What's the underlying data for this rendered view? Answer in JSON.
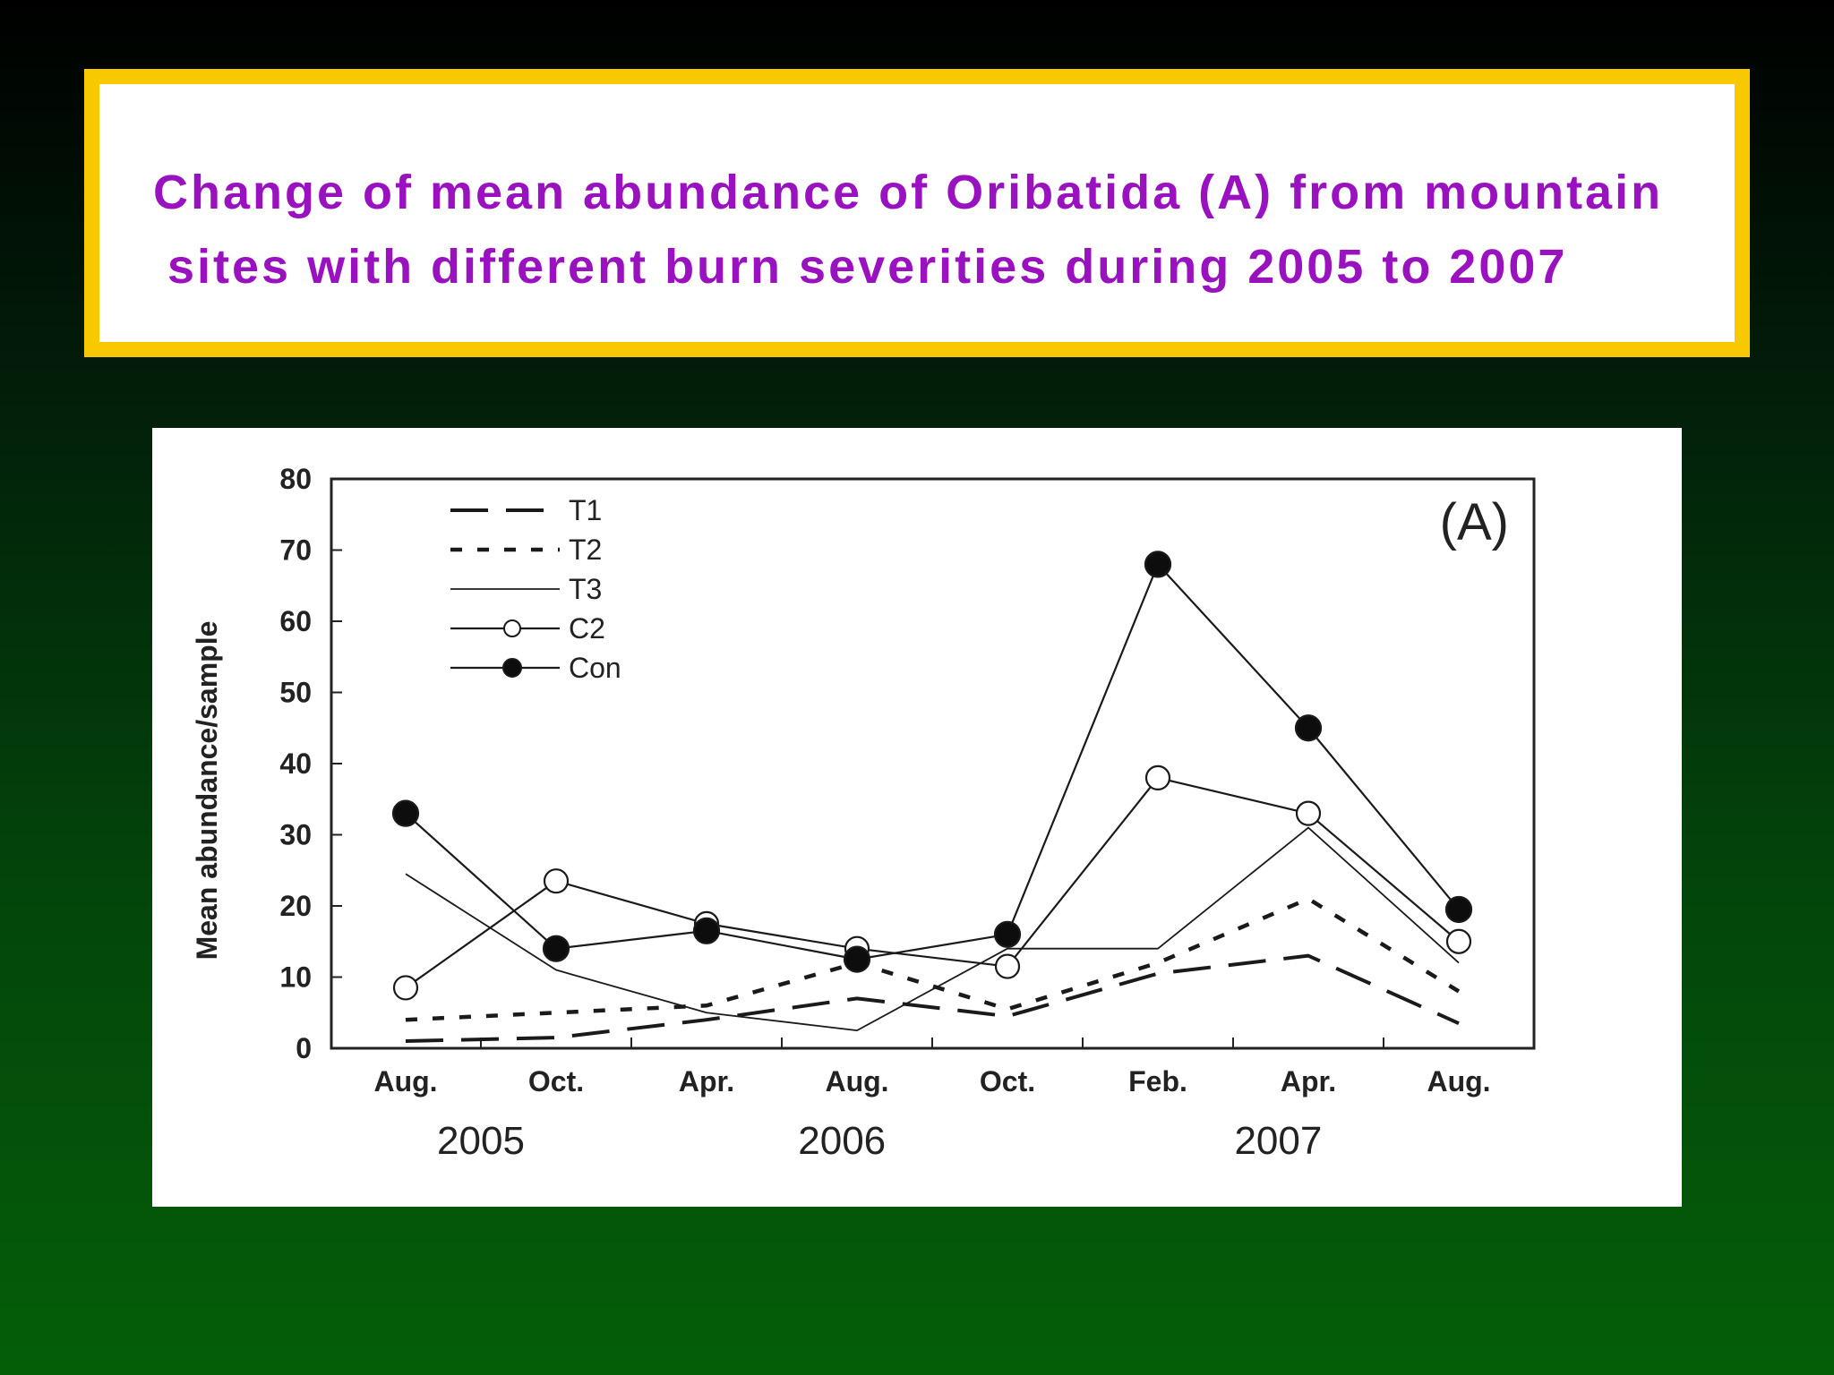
{
  "slide": {
    "title_lines": [
      "Change of mean abundance of Oribatida (A) from mountain",
      "sites with different burn severities during 2005 to 2007"
    ]
  },
  "chart_data": {
    "type": "line",
    "panel_label": "(A)",
    "ylabel": "Mean abundance/sample",
    "xlabel": "",
    "ylim": [
      0,
      80
    ],
    "yticks": [
      0,
      10,
      20,
      30,
      40,
      50,
      60,
      70,
      80
    ],
    "categories": [
      "Aug.",
      "Oct.",
      "Apr.",
      "Aug.",
      "Oct.",
      "Feb.",
      "Apr.",
      "Aug."
    ],
    "years": [
      {
        "label": "2005",
        "center_index": 0.5
      },
      {
        "label": "2006",
        "center_index": 2.9
      },
      {
        "label": "2007",
        "center_index": 5.8
      }
    ],
    "grid": false,
    "legend_placement": "top-left",
    "series": [
      {
        "name": "T1",
        "style": "long-dash",
        "marker": "none",
        "values": [
          1,
          1.5,
          4,
          7,
          4.5,
          10.5,
          13,
          3.5
        ]
      },
      {
        "name": "T2",
        "style": "short-dash",
        "marker": "none",
        "values": [
          4,
          5,
          6,
          12,
          5.5,
          12,
          21,
          8
        ]
      },
      {
        "name": "T3",
        "style": "solid-thin",
        "marker": "none",
        "values": [
          24.5,
          11,
          5,
          2.5,
          14,
          14,
          31,
          12
        ]
      },
      {
        "name": "C2",
        "style": "solid",
        "marker": "open-circle",
        "values": [
          8.5,
          23.5,
          17.5,
          14,
          11.5,
          38,
          33,
          15
        ]
      },
      {
        "name": "Con",
        "style": "solid",
        "marker": "filled-circle",
        "values": [
          33,
          14,
          16.5,
          12.5,
          16,
          68,
          45,
          19.5
        ]
      }
    ]
  }
}
